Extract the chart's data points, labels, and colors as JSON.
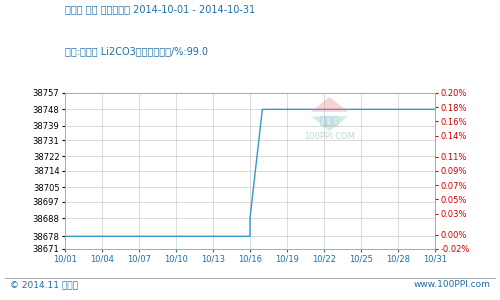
{
  "title_line1": "碳酸鋰 國內 生產者價格 2014-10-01 - 2014-10-31",
  "title_line2": "級別:工業級 Li2CO3主含量不小于/%:99.0",
  "x_labels": [
    "10/01",
    "10/04",
    "10/07",
    "10/10",
    "10/13",
    "10/16",
    "10/19",
    "10/22",
    "10/25",
    "10/28",
    "10/31"
  ],
  "y_left_ticks": [
    38671,
    38678,
    38688,
    38697,
    38705,
    38714,
    38722,
    38731,
    38739,
    38748,
    38757
  ],
  "y_right_ticks_vals": [
    -0.02,
    0.0,
    0.03,
    0.05,
    0.07,
    0.09,
    0.11,
    0.14,
    0.16,
    0.18,
    0.2
  ],
  "y_right_ticks_labels": [
    "-0.02%",
    "0.00%",
    "0.03%",
    "0.05%",
    "0.07%",
    "0.09%",
    "0.11%",
    "0.14%",
    "0.16%",
    "0.18%",
    "0.20%"
  ],
  "price_data_x": [
    0,
    1,
    2,
    3,
    4,
    5,
    6,
    7,
    8,
    9,
    10,
    11,
    12,
    13,
    14,
    15,
    15,
    16,
    17,
    18,
    19,
    20,
    21,
    22,
    23,
    24,
    25,
    26,
    27,
    28,
    29,
    30
  ],
  "price_data_y": [
    38678,
    38678,
    38678,
    38678,
    38678,
    38678,
    38678,
    38678,
    38678,
    38678,
    38678,
    38678,
    38678,
    38678,
    38678,
    38678,
    38688,
    38748,
    38748,
    38748,
    38748,
    38748,
    38748,
    38748,
    38748,
    38748,
    38748,
    38748,
    38748,
    38748,
    38748,
    38748
  ],
  "line_color": "#3399CC",
  "bg_color": "#FFFFFF",
  "plot_bg_color": "#FFFFFF",
  "grid_color": "#CCCCCC",
  "left_tick_color": "#000000",
  "right_tick_color": "#CC0000",
  "title_color": "#1E6FA8",
  "footer_left": "© 2014.11 生意社",
  "footer_right": "www.100PPI.com",
  "footer_color": "#1E6FA8",
  "watermark_text1": "生意社",
  "watermark_text2": "100PPI.COM",
  "ylim_left": [
    38671,
    38757
  ],
  "ylim_right": [
    -0.02,
    0.2
  ],
  "x_tick_positions": [
    0,
    3,
    6,
    9,
    12,
    15,
    18,
    21,
    24,
    27,
    30
  ]
}
